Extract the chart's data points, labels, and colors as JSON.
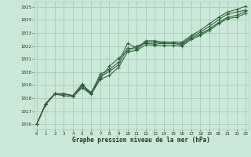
{
  "xlabel": "Graphe pression niveau de la mer (hPa)",
  "bg_color": "#cbe8d8",
  "grid_color": "#a8cdb8",
  "line_color": "#2d5e38",
  "text_color": "#1a4020",
  "x_ticks": [
    0,
    1,
    2,
    3,
    4,
    5,
    6,
    7,
    8,
    9,
    10,
    11,
    12,
    13,
    14,
    15,
    16,
    17,
    18,
    19,
    20,
    21,
    22,
    23
  ],
  "y_ticks": [
    1016,
    1017,
    1018,
    1019,
    1020,
    1021,
    1022,
    1023,
    1024,
    1025
  ],
  "xlim": [
    -0.3,
    23.3
  ],
  "ylim": [
    1015.6,
    1025.4
  ],
  "series": [
    [
      1016.0,
      1017.55,
      1018.35,
      1018.35,
      1018.2,
      1019.0,
      1018.45,
      1019.65,
      1020.05,
      1020.55,
      1021.85,
      1021.75,
      1022.3,
      1022.3,
      1022.2,
      1022.2,
      1022.2,
      1022.7,
      1023.05,
      1023.5,
      1024.0,
      1024.45,
      1024.6,
      1024.75
    ],
    [
      1016.0,
      1017.55,
      1018.35,
      1018.3,
      1018.2,
      1018.9,
      1018.35,
      1019.5,
      1020.45,
      1021.05,
      1021.65,
      1022.0,
      1022.2,
      1022.15,
      1022.2,
      1022.2,
      1022.1,
      1022.6,
      1022.9,
      1023.3,
      1023.8,
      1024.2,
      1024.35,
      1024.65
    ],
    [
      1016.0,
      1017.6,
      1018.35,
      1018.3,
      1018.2,
      1019.1,
      1018.35,
      1019.85,
      1020.2,
      1020.75,
      1022.2,
      1021.85,
      1022.4,
      1022.4,
      1022.3,
      1022.3,
      1022.3,
      1022.8,
      1023.2,
      1023.7,
      1024.2,
      1024.6,
      1024.8,
      1025.05
    ],
    [
      1016.0,
      1017.5,
      1018.3,
      1018.2,
      1018.1,
      1018.8,
      1018.3,
      1019.45,
      1019.75,
      1020.35,
      1021.55,
      1021.65,
      1022.1,
      1022.05,
      1022.05,
      1022.05,
      1022.0,
      1022.5,
      1022.8,
      1023.2,
      1023.7,
      1024.1,
      1024.2,
      1024.5
    ]
  ]
}
